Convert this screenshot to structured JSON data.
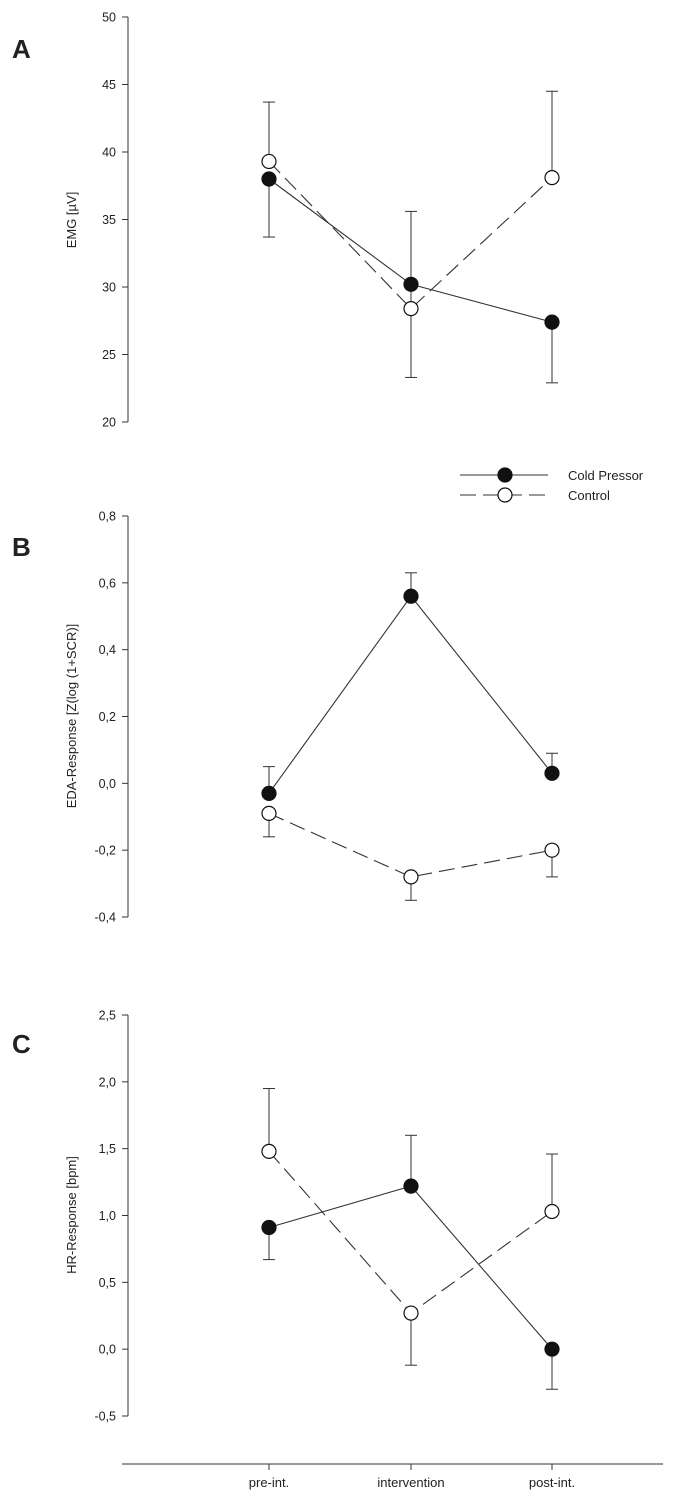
{
  "figure": {
    "x_categories": [
      "pre-int.",
      "intervention",
      "post-int."
    ],
    "legend": {
      "items": [
        {
          "label": "Cold Pressor",
          "marker": "filled-circle",
          "line": "solid"
        },
        {
          "label": "Control",
          "marker": "open-circle",
          "line": "dashed"
        }
      ]
    }
  },
  "chart_data": [
    {
      "type": "line",
      "panel_label": "A",
      "ylabel": "EMG [µV]",
      "ylim": [
        20,
        50
      ],
      "yticks": [
        "20",
        "25",
        "30",
        "35",
        "40",
        "45",
        "50"
      ],
      "categories": [
        "pre-int.",
        "intervention",
        "post-int."
      ],
      "series": [
        {
          "name": "Cold Pressor",
          "values": [
            38.0,
            30.2,
            27.4
          ],
          "err_low": [
            33.7,
            null,
            22.9
          ],
          "err_high": [
            null,
            null,
            null
          ]
        },
        {
          "name": "Control",
          "values": [
            39.3,
            28.4,
            38.1
          ],
          "err_low": [
            null,
            23.3,
            null
          ],
          "err_high": [
            43.7,
            35.6,
            44.5
          ]
        }
      ]
    },
    {
      "type": "line",
      "panel_label": "B",
      "ylabel": "EDA-Response [Z(log (1+SCR)]",
      "ylim": [
        -0.4,
        0.8
      ],
      "yticks": [
        "-0,4",
        "-0,2",
        "0,0",
        "0,2",
        "0,4",
        "0,6",
        "0,8"
      ],
      "categories": [
        "pre-int.",
        "intervention",
        "post-int."
      ],
      "series": [
        {
          "name": "Cold Pressor",
          "values": [
            -0.03,
            0.56,
            0.03
          ],
          "err_low": [
            null,
            null,
            null
          ],
          "err_high": [
            0.05,
            0.63,
            0.09
          ]
        },
        {
          "name": "Control",
          "values": [
            -0.09,
            -0.28,
            -0.2
          ],
          "err_low": [
            -0.16,
            -0.35,
            -0.28
          ],
          "err_high": [
            null,
            null,
            null
          ]
        }
      ]
    },
    {
      "type": "line",
      "panel_label": "C",
      "ylabel": "HR-Response [bpm]",
      "ylim": [
        -0.5,
        2.5
      ],
      "yticks": [
        "-0,5",
        "0,0",
        "0,5",
        "1,0",
        "1,5",
        "2,0",
        "2,5"
      ],
      "categories": [
        "pre-int.",
        "intervention",
        "post-int."
      ],
      "series": [
        {
          "name": "Cold Pressor",
          "values": [
            0.91,
            1.22,
            0.0
          ],
          "err_low": [
            0.67,
            null,
            -0.3
          ],
          "err_high": [
            null,
            1.6,
            null
          ]
        },
        {
          "name": "Control",
          "values": [
            1.48,
            0.27,
            1.03
          ],
          "err_low": [
            null,
            -0.12,
            null
          ],
          "err_high": [
            1.95,
            null,
            1.46
          ]
        }
      ]
    }
  ]
}
